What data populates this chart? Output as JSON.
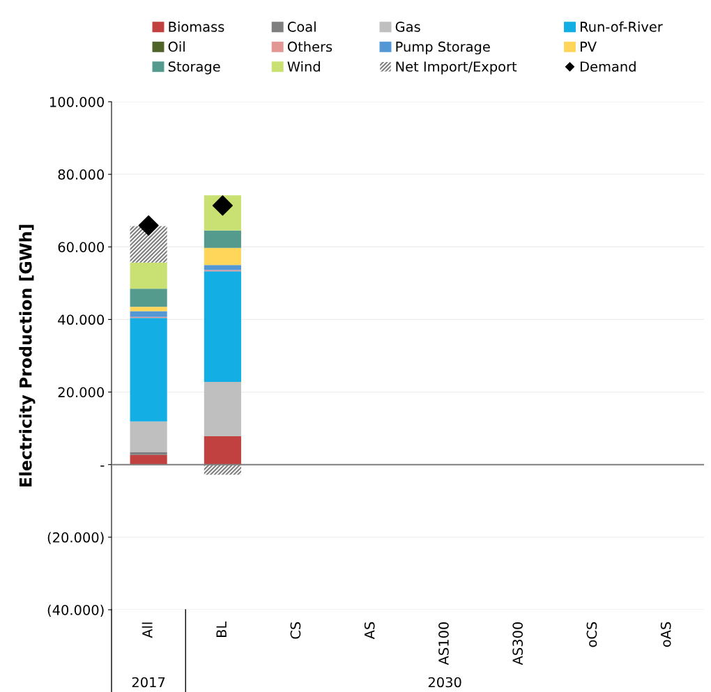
{
  "chart_data": {
    "type": "bar",
    "stacked": true,
    "ylabel": "Electricity Production [GWh]",
    "categories": [
      "All",
      "BL",
      "CS",
      "AS",
      "AS100",
      "AS300",
      "oCS",
      "oAS"
    ],
    "series": [
      {
        "name": "Biomass",
        "color": "#c0413f",
        "values": [
          2700,
          7800,
          null,
          null,
          null,
          null,
          null,
          null
        ]
      },
      {
        "name": "Coal",
        "color": "#7f7f7f",
        "values": [
          800,
          0,
          null,
          null,
          null,
          null,
          null,
          null
        ]
      },
      {
        "name": "Gas",
        "color": "#bfbfbf",
        "values": [
          8400,
          15000,
          null,
          null,
          null,
          null,
          null,
          null
        ]
      },
      {
        "name": "Run-of-River",
        "color": "#13aee4",
        "values": [
          28500,
          30500,
          null,
          null,
          null,
          null,
          null,
          null
        ]
      },
      {
        "name": "Oil",
        "color": "#4f6228",
        "values": [
          0,
          0,
          null,
          null,
          null,
          null,
          null,
          null
        ]
      },
      {
        "name": "Others",
        "color": "#e39794",
        "values": [
          300,
          300,
          null,
          null,
          null,
          null,
          null,
          null
        ]
      },
      {
        "name": "Pump Storage",
        "color": "#5398d5",
        "values": [
          1600,
          1400,
          null,
          null,
          null,
          null,
          null,
          null
        ]
      },
      {
        "name": "PV",
        "color": "#ffd55a",
        "values": [
          1200,
          4700,
          null,
          null,
          null,
          null,
          null,
          null
        ]
      },
      {
        "name": "Storage",
        "color": "#559b8d",
        "values": [
          5000,
          4800,
          null,
          null,
          null,
          null,
          null,
          null
        ]
      },
      {
        "name": "Wind",
        "color": "#c9e073",
        "values": [
          7200,
          9700,
          null,
          null,
          null,
          null,
          null,
          null
        ]
      },
      {
        "name": "Net Import/Export",
        "color": "#7f7f7f",
        "line_style": "dotted",
        "values": [
          10000,
          -2800,
          null,
          null,
          null,
          null,
          null,
          null
        ]
      },
      {
        "name": "Demand",
        "type": "scatter",
        "marker": "diamond",
        "color": "#000000",
        "values": [
          65900,
          71400,
          null,
          null,
          null,
          null,
          null,
          null
        ]
      }
    ],
    "ylim": [
      -40000,
      100000
    ],
    "yticks": [
      {
        "value": -40000,
        "label": "(40.000)"
      },
      {
        "value": -20000,
        "label": "(20.000)"
      },
      {
        "value": 0,
        "label": "-"
      },
      {
        "value": 20000,
        "label": "20.000"
      },
      {
        "value": 40000,
        "label": "40.000"
      },
      {
        "value": 60000,
        "label": "60.000"
      },
      {
        "value": 80000,
        "label": "80.000"
      },
      {
        "value": 100000,
        "label": "100.000"
      }
    ],
    "grid": "y",
    "legend": "top",
    "annotations": [
      "2017",
      "2030"
    ]
  }
}
